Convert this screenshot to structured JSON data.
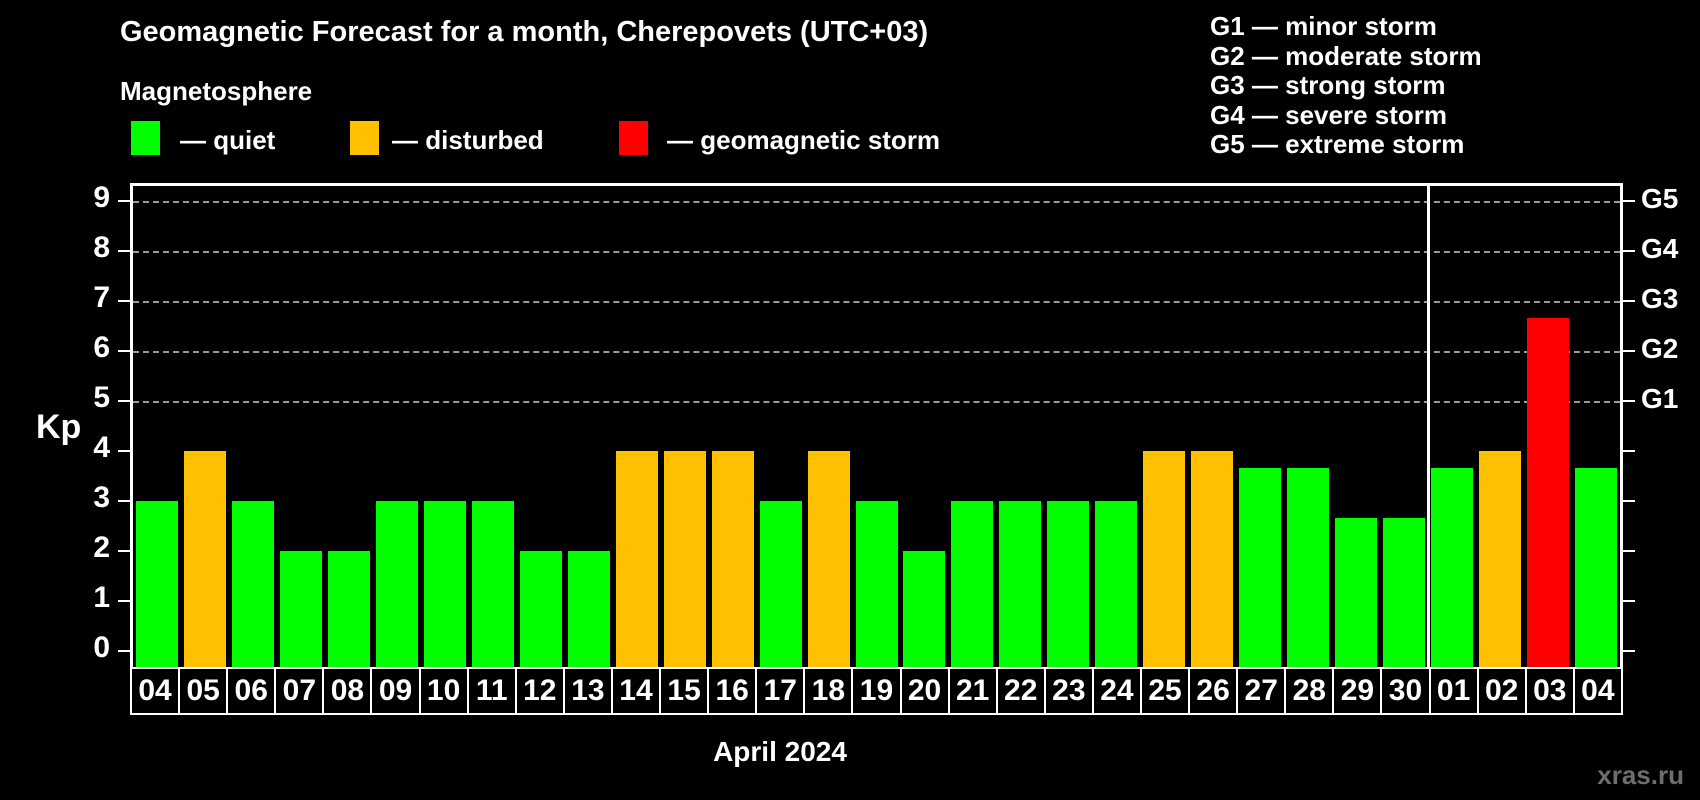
{
  "title": "Geomagnetic Forecast for a month, Cherepovets (UTC+03)",
  "subtitle": "Magnetosphere",
  "legend": {
    "quiet": {
      "label": "— quiet",
      "color": "#00ff00"
    },
    "disturbed": {
      "label": "— disturbed",
      "color": "#ffc000"
    },
    "storm": {
      "label": "— geomagnetic storm",
      "color": "#ff0000"
    }
  },
  "storm_scale": {
    "g1": "G1 — minor storm",
    "g2": "G2 — moderate storm",
    "g3": "G3 — strong storm",
    "g4": "G4 — severe storm",
    "g5": "G5 — extreme storm"
  },
  "month_label": "April 2024",
  "watermark": "xras.ru",
  "chart_data": {
    "type": "bar",
    "title": "Geomagnetic Forecast for a month, Cherepovets (UTC+03)",
    "xlabel": "April 2024",
    "ylabel": "Kp",
    "ylim": [
      0,
      9.35
    ],
    "yticks": [
      0,
      1,
      2,
      3,
      4,
      5,
      6,
      7,
      8,
      9
    ],
    "gridlines_kp": [
      5,
      6,
      7,
      8,
      9
    ],
    "grid": "horizontal dashed at Kp 5-9",
    "legend_position": "top-left",
    "right_axis_labels": [
      {
        "kp": 5,
        "label": "G1"
      },
      {
        "kp": 6,
        "label": "G2"
      },
      {
        "kp": 7,
        "label": "G3"
      },
      {
        "kp": 8,
        "label": "G4"
      },
      {
        "kp": 9,
        "label": "G5"
      }
    ],
    "colors": {
      "quiet": "#00ff00",
      "disturbed": "#ffc000",
      "storm": "#ff0000"
    },
    "month_separator_after_index": 26,
    "categories": [
      "04",
      "05",
      "06",
      "07",
      "08",
      "09",
      "10",
      "11",
      "12",
      "13",
      "14",
      "15",
      "16",
      "17",
      "18",
      "19",
      "20",
      "21",
      "22",
      "23",
      "24",
      "25",
      "26",
      "27",
      "28",
      "29",
      "30",
      "01",
      "02",
      "03",
      "04"
    ],
    "values": [
      3,
      4,
      3,
      2,
      2,
      3,
      3,
      3,
      2,
      2,
      4,
      4,
      4,
      3,
      4,
      3,
      2,
      3,
      3,
      3,
      3,
      4,
      4,
      3.67,
      3.67,
      2.67,
      2.67,
      3.67,
      4,
      6.67,
      3.67
    ],
    "days": [
      {
        "date": "04",
        "kp": 3,
        "status": "quiet"
      },
      {
        "date": "05",
        "kp": 4,
        "status": "disturbed"
      },
      {
        "date": "06",
        "kp": 3,
        "status": "quiet"
      },
      {
        "date": "07",
        "kp": 2,
        "status": "quiet"
      },
      {
        "date": "08",
        "kp": 2,
        "status": "quiet"
      },
      {
        "date": "09",
        "kp": 3,
        "status": "quiet"
      },
      {
        "date": "10",
        "kp": 3,
        "status": "quiet"
      },
      {
        "date": "11",
        "kp": 3,
        "status": "quiet"
      },
      {
        "date": "12",
        "kp": 2,
        "status": "quiet"
      },
      {
        "date": "13",
        "kp": 2,
        "status": "quiet"
      },
      {
        "date": "14",
        "kp": 4,
        "status": "disturbed"
      },
      {
        "date": "15",
        "kp": 4,
        "status": "disturbed"
      },
      {
        "date": "16",
        "kp": 4,
        "status": "disturbed"
      },
      {
        "date": "17",
        "kp": 3,
        "status": "quiet"
      },
      {
        "date": "18",
        "kp": 4,
        "status": "disturbed"
      },
      {
        "date": "19",
        "kp": 3,
        "status": "quiet"
      },
      {
        "date": "20",
        "kp": 2,
        "status": "quiet"
      },
      {
        "date": "21",
        "kp": 3,
        "status": "quiet"
      },
      {
        "date": "22",
        "kp": 3,
        "status": "quiet"
      },
      {
        "date": "23",
        "kp": 3,
        "status": "quiet"
      },
      {
        "date": "24",
        "kp": 3,
        "status": "quiet"
      },
      {
        "date": "25",
        "kp": 4,
        "status": "disturbed"
      },
      {
        "date": "26",
        "kp": 4,
        "status": "disturbed"
      },
      {
        "date": "27",
        "kp": 3.67,
        "status": "quiet"
      },
      {
        "date": "28",
        "kp": 3.67,
        "status": "quiet"
      },
      {
        "date": "29",
        "kp": 2.67,
        "status": "quiet"
      },
      {
        "date": "30",
        "kp": 2.67,
        "status": "quiet"
      },
      {
        "date": "01",
        "kp": 3.67,
        "status": "quiet"
      },
      {
        "date": "02",
        "kp": 4,
        "status": "disturbed"
      },
      {
        "date": "03",
        "kp": 6.67,
        "status": "storm"
      },
      {
        "date": "04",
        "kp": 3.67,
        "status": "quiet"
      }
    ]
  }
}
